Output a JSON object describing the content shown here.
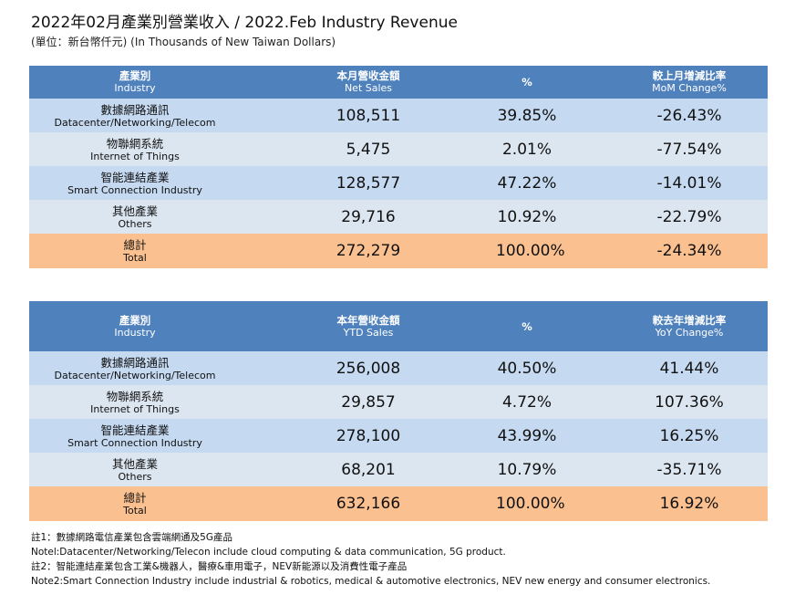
{
  "title": "2022年02月產業別營業收入 / 2022.Feb Industry Revenue",
  "subtitle": "(單位：新台幣仟元) (In Thousands of New Taiwan Dollars)",
  "colors": {
    "header": "#4f81bd",
    "row_dark": "#c5d9f1",
    "row_light": "#dce6f1",
    "total": "#fac090"
  },
  "monthly": {
    "headers": [
      {
        "zh": "產業別",
        "en": "Industry"
      },
      {
        "zh": "本月營收金額",
        "en": "Net Sales"
      },
      {
        "zh": "%",
        "en": ""
      },
      {
        "zh": "較上月增減比率",
        "en": "MoM Change%"
      }
    ],
    "rows": [
      {
        "zh": "數據網路通訊",
        "en": "Datacenter/Networking/Telecom",
        "sales": "108,511",
        "pct": "39.85%",
        "chg": "-26.43%"
      },
      {
        "zh": "物聯網系統",
        "en": "Internet of Things",
        "sales": "5,475",
        "pct": "2.01%",
        "chg": "-77.54%"
      },
      {
        "zh": "智能連結產業",
        "en": "Smart Connection Industry",
        "sales": "128,577",
        "pct": "47.22%",
        "chg": "-14.01%"
      },
      {
        "zh": "其他產業",
        "en": "Others",
        "sales": "29,716",
        "pct": "10.92%",
        "chg": "-22.79%"
      },
      {
        "zh": "總計",
        "en": "Total",
        "sales": "272,279",
        "pct": "100.00%",
        "chg": "-24.34%"
      }
    ]
  },
  "ytd": {
    "headers": [
      {
        "zh": "產業別",
        "en": "Industry"
      },
      {
        "zh": "本年營收金額",
        "en": "YTD Sales"
      },
      {
        "zh": "%",
        "en": ""
      },
      {
        "zh": "較去年增減比率",
        "en": "YoY Change%"
      }
    ],
    "rows": [
      {
        "zh": "數據網路通訊",
        "en": "Datacenter/Networking/Telecom",
        "sales": "256,008",
        "pct": "40.50%",
        "chg": "41.44%"
      },
      {
        "zh": "物聯網系統",
        "en": "Internet of Things",
        "sales": "29,857",
        "pct": "4.72%",
        "chg": "107.36%"
      },
      {
        "zh": "智能連結產業",
        "en": "Smart Connection Industry",
        "sales": "278,100",
        "pct": "43.99%",
        "chg": "16.25%"
      },
      {
        "zh": "其他產業",
        "en": "Others",
        "sales": "68,201",
        "pct": "10.79%",
        "chg": "-35.71%"
      },
      {
        "zh": "總計",
        "en": "Total",
        "sales": "632,166",
        "pct": "100.00%",
        "chg": "16.92%"
      }
    ]
  },
  "notes": [
    "註1：數據網路電信產業包含雲端網通及5G產品",
    "Notel:Datacenter/Networking/Telecon include cloud computing & data communication, 5G product.",
    "註2：智能連結產業包含工業&機器人，醫療&車用電子，NEV新能源以及消費性電子產品",
    "Note2:Smart Connection Industry include industrial & robotics, medical & automotive electronics, NEV new energy and consumer electronics."
  ]
}
